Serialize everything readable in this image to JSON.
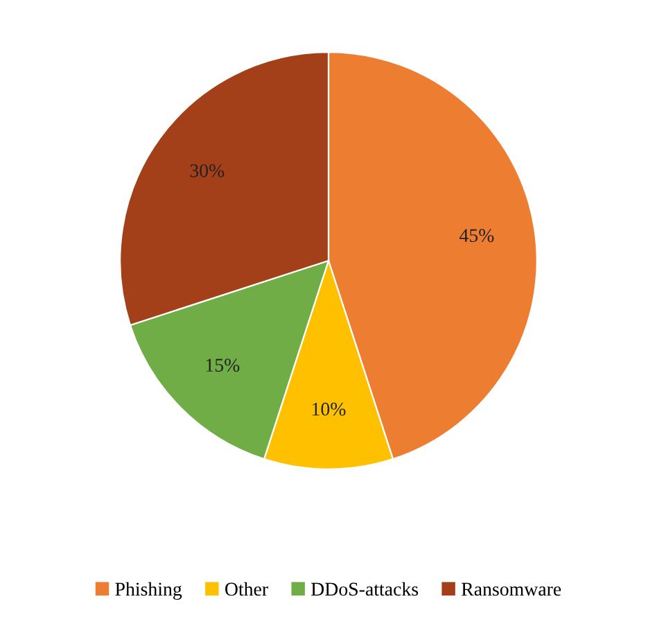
{
  "chart_data": {
    "type": "pie",
    "categories": [
      "Phishing",
      "Other",
      "DDoS-attacks",
      "Ransomware"
    ],
    "values": [
      45,
      10,
      15,
      30
    ],
    "colors": [
      "#ed7d31",
      "#ffc000",
      "#70ad47",
      "#a3401a"
    ],
    "value_labels": [
      "45%",
      "10%",
      "15%",
      "30%"
    ],
    "legend": "bottom"
  }
}
